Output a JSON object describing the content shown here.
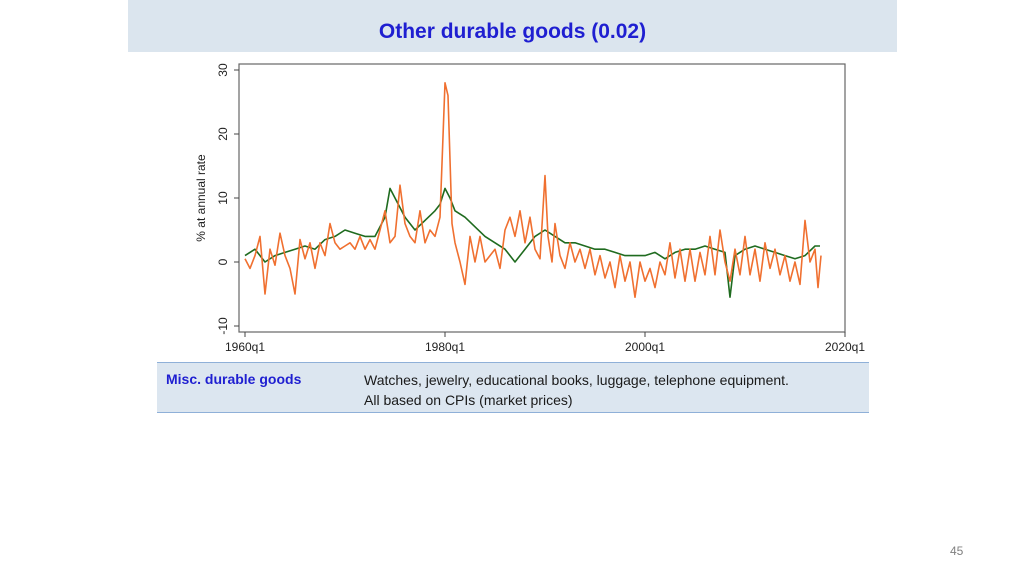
{
  "slide": {
    "title": "Other durable goods (0.02)",
    "page_number": "45"
  },
  "info": {
    "label": "Misc. durable goods",
    "line1": "Watches, jewelry, educational books, luggage, telephone equipment.",
    "line2": "All based on CPIs (market prices)"
  },
  "colors": {
    "title": "#1f1fd1",
    "green_series": "#1f6b1f",
    "orange_series": "#f07030",
    "band": "#dbe5ee"
  },
  "chart_data": {
    "type": "line",
    "title": "",
    "xlabel": "",
    "ylabel": "% at annual rate",
    "xlim": [
      1960,
      2020
    ],
    "ylim": [
      -10,
      30
    ],
    "x_ticks": [
      "1960q1",
      "1980q1",
      "2000q1",
      "2020q1"
    ],
    "y_ticks": [
      "-10",
      "0",
      "10",
      "20",
      "30"
    ],
    "grid": false,
    "legend": "none",
    "series": [
      {
        "color": "#1f6b1f",
        "points": [
          [
            1960,
            1
          ],
          [
            1961,
            2
          ],
          [
            1962,
            0
          ],
          [
            1963,
            1
          ],
          [
            1964,
            1.5
          ],
          [
            1965,
            2
          ],
          [
            1966,
            2.5
          ],
          [
            1967,
            2
          ],
          [
            1968,
            3.5
          ],
          [
            1969,
            4
          ],
          [
            1970,
            5
          ],
          [
            1971,
            4.5
          ],
          [
            1972,
            4
          ],
          [
            1973,
            4
          ],
          [
            1974,
            7
          ],
          [
            1974.5,
            11.5
          ],
          [
            1975,
            10
          ],
          [
            1976,
            7
          ],
          [
            1977,
            5
          ],
          [
            1978,
            6.5
          ],
          [
            1979,
            8
          ],
          [
            1979.5,
            9
          ],
          [
            1980,
            11.5
          ],
          [
            1980.5,
            10
          ],
          [
            1981,
            8
          ],
          [
            1982,
            7
          ],
          [
            1983,
            5.5
          ],
          [
            1984,
            4
          ],
          [
            1985,
            3
          ],
          [
            1986,
            2
          ],
          [
            1987,
            0
          ],
          [
            1988,
            2
          ],
          [
            1989,
            4
          ],
          [
            1990,
            5
          ],
          [
            1991,
            4
          ],
          [
            1992,
            3
          ],
          [
            1993,
            3
          ],
          [
            1994,
            2.5
          ],
          [
            1995,
            2
          ],
          [
            1996,
            2
          ],
          [
            1997,
            1.5
          ],
          [
            1998,
            1
          ],
          [
            1999,
            1
          ],
          [
            2000,
            1
          ],
          [
            2001,
            1.5
          ],
          [
            2002,
            0.5
          ],
          [
            2003,
            1.5
          ],
          [
            2004,
            2
          ],
          [
            2005,
            2
          ],
          [
            2006,
            2.5
          ],
          [
            2007,
            2
          ],
          [
            2008,
            1.5
          ],
          [
            2008.5,
            -5.5
          ],
          [
            2009,
            1
          ],
          [
            2010,
            2
          ],
          [
            2011,
            2.5
          ],
          [
            2012,
            2
          ],
          [
            2013,
            1.5
          ],
          [
            2014,
            1
          ],
          [
            2015,
            0.5
          ],
          [
            2016,
            1
          ],
          [
            2017,
            2.5
          ],
          [
            2017.5,
            2.5
          ]
        ]
      },
      {
        "color": "#f07030",
        "points": [
          [
            1960,
            0.5
          ],
          [
            1960.5,
            -1
          ],
          [
            1961,
            1
          ],
          [
            1961.5,
            4
          ],
          [
            1962,
            -5
          ],
          [
            1962.5,
            2
          ],
          [
            1963,
            -0.5
          ],
          [
            1963.5,
            4.5
          ],
          [
            1964,
            1
          ],
          [
            1964.5,
            -1
          ],
          [
            1965,
            -5
          ],
          [
            1965.5,
            3.5
          ],
          [
            1966,
            0.5
          ],
          [
            1966.5,
            3
          ],
          [
            1967,
            -1
          ],
          [
            1967.5,
            3
          ],
          [
            1968,
            1
          ],
          [
            1968.5,
            6
          ],
          [
            1969,
            3
          ],
          [
            1969.5,
            2
          ],
          [
            1970,
            2.5
          ],
          [
            1970.5,
            3
          ],
          [
            1971,
            2
          ],
          [
            1971.5,
            4
          ],
          [
            1972,
            2
          ],
          [
            1972.5,
            3.5
          ],
          [
            1973,
            2
          ],
          [
            1973.5,
            5
          ],
          [
            1974,
            8
          ],
          [
            1974.5,
            3
          ],
          [
            1975,
            4
          ],
          [
            1975.5,
            12
          ],
          [
            1976,
            6
          ],
          [
            1976.5,
            4
          ],
          [
            1977,
            3
          ],
          [
            1977.5,
            8
          ],
          [
            1978,
            3
          ],
          [
            1978.5,
            5
          ],
          [
            1979,
            4
          ],
          [
            1979.5,
            7
          ],
          [
            1980,
            28
          ],
          [
            1980.3,
            26
          ],
          [
            1980.7,
            6
          ],
          [
            1981,
            3
          ],
          [
            1981.5,
            0
          ],
          [
            1982,
            -3.5
          ],
          [
            1982.5,
            4
          ],
          [
            1983,
            0
          ],
          [
            1983.5,
            4
          ],
          [
            1984,
            0
          ],
          [
            1984.5,
            1
          ],
          [
            1985,
            2
          ],
          [
            1985.5,
            -1
          ],
          [
            1986,
            5
          ],
          [
            1986.5,
            7
          ],
          [
            1987,
            4
          ],
          [
            1987.5,
            8
          ],
          [
            1988,
            3
          ],
          [
            1988.5,
            7
          ],
          [
            1989,
            2
          ],
          [
            1989.5,
            0.5
          ],
          [
            1990,
            13.5
          ],
          [
            1990.3,
            4
          ],
          [
            1990.7,
            0
          ],
          [
            1991,
            6
          ],
          [
            1991.5,
            1
          ],
          [
            1992,
            -1
          ],
          [
            1992.5,
            3
          ],
          [
            1993,
            0
          ],
          [
            1993.5,
            2
          ],
          [
            1994,
            -1
          ],
          [
            1994.5,
            2
          ],
          [
            1995,
            -2
          ],
          [
            1995.5,
            1
          ],
          [
            1996,
            -2.5
          ],
          [
            1996.5,
            0
          ],
          [
            1997,
            -4
          ],
          [
            1997.5,
            1
          ],
          [
            1998,
            -3
          ],
          [
            1998.5,
            0
          ],
          [
            1999,
            -5.5
          ],
          [
            1999.5,
            0
          ],
          [
            2000,
            -3
          ],
          [
            2000.5,
            -1
          ],
          [
            2001,
            -4
          ],
          [
            2001.5,
            0
          ],
          [
            2002,
            -2
          ],
          [
            2002.5,
            3
          ],
          [
            2003,
            -2.5
          ],
          [
            2003.5,
            2
          ],
          [
            2004,
            -3
          ],
          [
            2004.5,
            2
          ],
          [
            2005,
            -3
          ],
          [
            2005.5,
            1.5
          ],
          [
            2006,
            -2
          ],
          [
            2006.5,
            4
          ],
          [
            2007,
            -2
          ],
          [
            2007.5,
            5
          ],
          [
            2008,
            0
          ],
          [
            2008.5,
            -3
          ],
          [
            2009,
            2
          ],
          [
            2009.5,
            -2
          ],
          [
            2010,
            4
          ],
          [
            2010.5,
            -2
          ],
          [
            2011,
            2
          ],
          [
            2011.5,
            -3
          ],
          [
            2012,
            3
          ],
          [
            2012.5,
            -1
          ],
          [
            2013,
            2
          ],
          [
            2013.5,
            -2
          ],
          [
            2014,
            1
          ],
          [
            2014.5,
            -3
          ],
          [
            2015,
            0
          ],
          [
            2015.5,
            -3.5
          ],
          [
            2016,
            6.5
          ],
          [
            2016.5,
            0
          ],
          [
            2017,
            2
          ],
          [
            2017.3,
            -4
          ],
          [
            2017.6,
            1
          ]
        ]
      }
    ]
  }
}
